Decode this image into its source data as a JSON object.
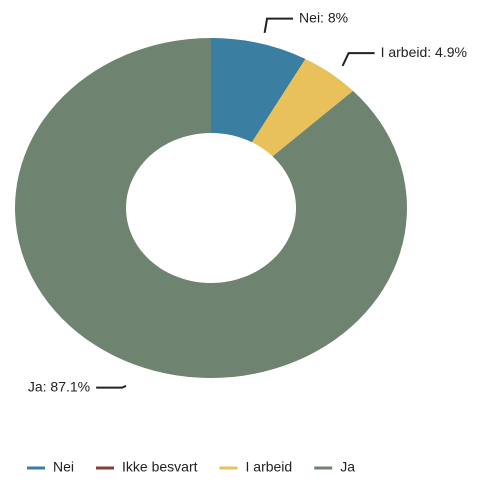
{
  "chart_data": {
    "type": "donut",
    "categories": [
      "Nei",
      "Ikke besvart",
      "I arbeid",
      "Ja"
    ],
    "values": [
      8,
      0,
      4.9,
      87.1
    ],
    "value_labels": [
      "Nei: 8%",
      null,
      "I arbeid: 4.9%",
      "Ja: 87.1%"
    ],
    "colors": [
      "#3a7ea1",
      "#8b3a3a",
      "#e8c15a",
      "#6e8470"
    ],
    "legend": "bottom"
  }
}
